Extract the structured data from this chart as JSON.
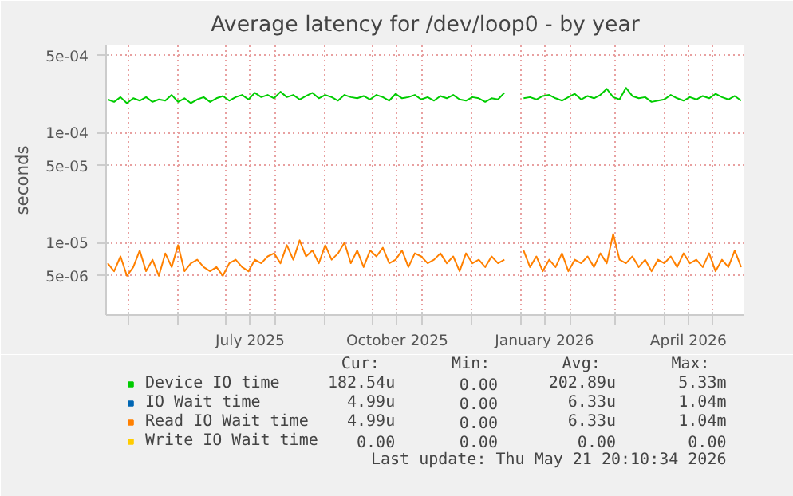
{
  "chart_data": {
    "type": "line",
    "title": "Average latency for /dev/loop0 - by year",
    "ylabel": "seconds",
    "x": [
      "2025-04-18",
      "2025-04-22",
      "2025-04-26",
      "2025-04-30",
      "2025-05-04",
      "2025-05-08",
      "2025-05-12",
      "2025-05-16",
      "2025-05-20",
      "2025-05-24",
      "2025-05-28",
      "2025-06-01",
      "2025-06-05",
      "2025-06-09",
      "2025-06-13",
      "2025-06-17",
      "2025-06-21",
      "2025-06-25",
      "2025-06-29",
      "2025-07-03",
      "2025-07-07",
      "2025-07-11",
      "2025-07-15",
      "2025-07-19",
      "2025-07-23",
      "2025-07-27",
      "2025-07-31",
      "2025-08-04",
      "2025-08-08",
      "2025-08-12",
      "2025-08-16",
      "2025-08-20",
      "2025-08-24",
      "2025-08-28",
      "2025-09-01",
      "2025-09-05",
      "2025-09-09",
      "2025-09-13",
      "2025-09-17",
      "2025-09-21",
      "2025-09-25",
      "2025-09-29",
      "2025-10-03",
      "2025-10-07",
      "2025-10-11",
      "2025-10-15",
      "2025-10-19",
      "2025-10-23",
      "2025-10-27",
      "2025-10-31",
      "2025-11-04",
      "2025-11-08",
      "2025-11-12",
      "2025-11-16",
      "2025-11-20",
      "2025-11-24",
      "2025-11-28",
      "2025-12-02",
      "2025-12-06",
      "2025-12-10",
      "2025-12-14",
      "2025-12-18",
      "2025-12-22",
      "2025-12-26",
      "2025-12-30",
      "2026-01-03",
      "2026-01-07",
      "2026-01-11",
      "2026-01-15",
      "2026-01-19",
      "2026-01-23",
      "2026-01-27",
      "2026-01-31",
      "2026-02-04",
      "2026-02-08",
      "2026-02-12",
      "2026-02-16",
      "2026-02-20",
      "2026-02-24",
      "2026-02-28",
      "2026-03-04",
      "2026-03-08",
      "2026-03-12",
      "2026-03-16",
      "2026-03-20",
      "2026-03-24",
      "2026-03-28",
      "2026-04-01",
      "2026-04-05",
      "2026-04-09",
      "2026-04-13",
      "2026-04-17",
      "2026-04-21",
      "2026-04-25",
      "2026-04-29",
      "2026-05-03",
      "2026-05-07",
      "2026-05-11",
      "2026-05-15",
      "2026-05-19"
    ],
    "series": [
      {
        "name": "Device IO time",
        "color": "#00cc00",
        "values": [
          0.0002,
          0.00019,
          0.00021,
          0.000185,
          0.000205,
          0.000195,
          0.00021,
          0.00019,
          0.0002,
          0.000195,
          0.00022,
          0.00019,
          0.000205,
          0.000185,
          0.0002,
          0.00021,
          0.00019,
          0.000205,
          0.000215,
          0.000195,
          0.00021,
          0.00022,
          0.0002,
          0.00023,
          0.00021,
          0.00022,
          0.000205,
          0.000235,
          0.00021,
          0.00022,
          0.0002,
          0.000215,
          0.00023,
          0.000205,
          0.00022,
          0.00021,
          0.000195,
          0.00022,
          0.00021,
          0.000205,
          0.000215,
          0.0002,
          0.00022,
          0.00021,
          0.000195,
          0.000225,
          0.000205,
          0.00021,
          0.00022,
          0.0002,
          0.00021,
          0.000195,
          0.000215,
          0.000205,
          0.00022,
          0.0002,
          0.000195,
          0.00021,
          0.000205,
          0.00019,
          0.000205,
          0.0002,
          0.00023,
          null,
          null,
          0.000205,
          0.00021,
          0.0002,
          0.000215,
          0.00022,
          0.000205,
          0.000195,
          0.00021,
          0.000225,
          0.0002,
          0.000215,
          0.000205,
          0.00022,
          0.00025,
          0.00021,
          0.0002,
          0.000255,
          0.000215,
          0.000205,
          0.00021,
          0.00019,
          0.000195,
          0.0002,
          0.00022,
          0.000205,
          0.000195,
          0.00021,
          0.0002,
          0.000215,
          0.000205,
          0.000225,
          0.00021,
          0.0002,
          0.000215,
          0.000195
        ]
      },
      {
        "name": "IO Wait time",
        "color": "#0066b3",
        "values": [
          null,
          null,
          null,
          null,
          null,
          null,
          null,
          null,
          null,
          null,
          null,
          null,
          null,
          null,
          null,
          null,
          null,
          null,
          null,
          null,
          null,
          null,
          null,
          null,
          null,
          null,
          null,
          null,
          null,
          null,
          null,
          null,
          null,
          null,
          null,
          null,
          null,
          null,
          null,
          null,
          null,
          null,
          null,
          null,
          null,
          null,
          null,
          null,
          null,
          null,
          null,
          null,
          null,
          null,
          null,
          null,
          null,
          null,
          null,
          null,
          null,
          null,
          null,
          null,
          null,
          null,
          null,
          null,
          null,
          null,
          null,
          null,
          null,
          null,
          null,
          null,
          null,
          null,
          null,
          null,
          null,
          null,
          null,
          null,
          null,
          null,
          null,
          null,
          null,
          null,
          null,
          null,
          null,
          null,
          null,
          null,
          null,
          null,
          null,
          null
        ]
      },
      {
        "name": "Read IO Wait time",
        "color": "#ff8000",
        "values": [
          6.5e-06,
          5.5e-06,
          7.5e-06,
          5e-06,
          6e-06,
          8.5e-06,
          5.5e-06,
          7e-06,
          5e-06,
          8e-06,
          6e-06,
          9.5e-06,
          5.5e-06,
          6.5e-06,
          7e-06,
          6e-06,
          5.5e-06,
          6e-06,
          5e-06,
          6.5e-06,
          7e-06,
          6e-06,
          5.5e-06,
          7e-06,
          6.5e-06,
          7.5e-06,
          8e-06,
          6.5e-06,
          9.5e-06,
          7e-06,
          1.05e-05,
          7.5e-06,
          8.5e-06,
          6.5e-06,
          9.5e-06,
          7e-06,
          8e-06,
          1e-05,
          6.5e-06,
          8.5e-06,
          6e-06,
          8.5e-06,
          7.5e-06,
          9e-06,
          6.5e-06,
          7e-06,
          8.5e-06,
          6e-06,
          8e-06,
          7.5e-06,
          6.5e-06,
          7e-06,
          8e-06,
          6.5e-06,
          7.5e-06,
          5.5e-06,
          8e-06,
          6.5e-06,
          7e-06,
          6e-06,
          7.5e-06,
          6.5e-06,
          7e-06,
          null,
          null,
          8.5e-06,
          6e-06,
          7.5e-06,
          5.5e-06,
          7e-06,
          6e-06,
          8e-06,
          5.5e-06,
          7e-06,
          6.5e-06,
          7.5e-06,
          6e-06,
          8e-06,
          6.5e-06,
          1.2e-05,
          7e-06,
          6.5e-06,
          7.5e-06,
          6e-06,
          7e-06,
          5.5e-06,
          7e-06,
          6.5e-06,
          7.5e-06,
          6e-06,
          8e-06,
          6.5e-06,
          7e-06,
          6e-06,
          8e-06,
          5.5e-06,
          7e-06,
          6e-06,
          8.5e-06,
          6e-06
        ]
      },
      {
        "name": "Write IO Wait time",
        "color": "#ffcc00",
        "values": [
          null,
          null,
          null,
          null,
          null,
          null,
          null,
          null,
          null,
          null,
          null,
          null,
          null,
          null,
          null,
          null,
          null,
          null,
          null,
          null,
          null,
          null,
          null,
          null,
          null,
          null,
          null,
          null,
          null,
          null,
          null,
          null,
          null,
          null,
          null,
          null,
          null,
          null,
          null,
          null,
          null,
          null,
          null,
          null,
          null,
          null,
          null,
          null,
          null,
          null,
          null,
          null,
          null,
          null,
          null,
          null,
          null,
          null,
          null,
          null,
          null,
          null,
          null,
          null,
          null,
          null,
          null,
          null,
          null,
          null,
          null,
          null,
          null,
          null,
          null,
          null,
          null,
          null,
          null,
          null,
          null,
          null,
          null,
          null,
          null,
          null,
          null,
          null,
          null,
          null,
          null,
          null,
          null,
          null,
          null,
          null,
          null,
          null,
          null,
          null
        ]
      }
    ],
    "log": true,
    "xlim": [
      "2025-04-17",
      "2026-05-21"
    ],
    "xticks": [
      {
        "value": "2025-05-01",
        "label": null
      },
      {
        "value": "2025-06-01",
        "label": null
      },
      {
        "value": "2025-07-01",
        "label": null
      },
      {
        "value": "2025-07-16",
        "label": "July 2025"
      },
      {
        "value": "2025-08-01",
        "label": null
      },
      {
        "value": "2025-09-01",
        "label": null
      },
      {
        "value": "2025-10-01",
        "label": null
      },
      {
        "value": "2025-10-16",
        "label": "October 2025"
      },
      {
        "value": "2025-11-01",
        "label": null
      },
      {
        "value": "2025-12-01",
        "label": null
      },
      {
        "value": "2026-01-01",
        "label": null
      },
      {
        "value": "2026-01-16",
        "label": "January 2026"
      },
      {
        "value": "2026-02-01",
        "label": null
      },
      {
        "value": "2026-03-01",
        "label": null
      },
      {
        "value": "2026-04-01",
        "label": null
      },
      {
        "value": "2026-04-16",
        "label": "April 2026"
      },
      {
        "value": "2026-05-01",
        "label": null
      }
    ],
    "ylim": [
      2.2e-06,
      0.00062
    ],
    "yticks": [
      {
        "value": 5e-06,
        "label": "5e-06"
      },
      {
        "value": 1e-05,
        "label": "1e-05"
      },
      {
        "value": 5e-05,
        "label": "5e-05"
      },
      {
        "value": 0.0001,
        "label": "1e-04"
      },
      {
        "value": 0.0005,
        "label": "5e-04"
      }
    ],
    "grid": true,
    "legend": "bottom",
    "annotations": [
      "Cur:",
      "Min:",
      "Avg:",
      "Max:",
      "182.54u",
      "0.00",
      "202.89u",
      "5.33m",
      "4.99u",
      "0.00",
      "6.33u",
      "1.04m",
      "4.99u",
      "0.00",
      "6.33u",
      "1.04m",
      "0.00",
      "0.00",
      "0.00",
      "0.00",
      "Last update: Thu May 21 20:10:34 2026"
    ]
  }
}
